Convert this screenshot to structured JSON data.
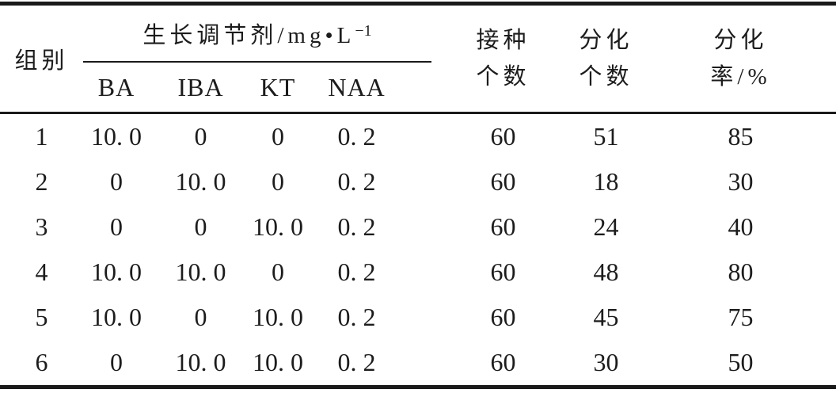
{
  "table": {
    "title_semantic": "植物生长调节剂与分化率试验结果表",
    "ink_color": "#1c1c1c",
    "background_color": "#ffffff",
    "header": {
      "group": "组别",
      "regulator": {
        "main": "生长调节剂/mg•L",
        "sup": "−1"
      },
      "sub": [
        "BA",
        "IBA",
        "KT",
        "NAA"
      ],
      "inoculated": {
        "line1": "接种",
        "line2": "个数"
      },
      "differentiated": {
        "line1": "分化",
        "line2": "个数"
      },
      "rate": {
        "line1": "分化",
        "line2": "率/%"
      }
    },
    "rows": [
      {
        "group": "1",
        "ba": "10. 0",
        "iba": "0",
        "kt": "0",
        "naa": "0. 2",
        "inoculated": "60",
        "differentiated": "51",
        "rate": "85"
      },
      {
        "group": "2",
        "ba": "0",
        "iba": "10. 0",
        "kt": "0",
        "naa": "0. 2",
        "inoculated": "60",
        "differentiated": "18",
        "rate": "30"
      },
      {
        "group": "3",
        "ba": "0",
        "iba": "0",
        "kt": "10. 0",
        "naa": "0. 2",
        "inoculated": "60",
        "differentiated": "24",
        "rate": "40"
      },
      {
        "group": "4",
        "ba": "10. 0",
        "iba": "10. 0",
        "kt": "0",
        "naa": "0. 2",
        "inoculated": "60",
        "differentiated": "48",
        "rate": "80"
      },
      {
        "group": "5",
        "ba": "10. 0",
        "iba": "0",
        "kt": "10. 0",
        "naa": "0. 2",
        "inoculated": "60",
        "differentiated": "45",
        "rate": "75"
      },
      {
        "group": "6",
        "ba": "0",
        "iba": "10. 0",
        "kt": "10. 0",
        "naa": "0. 2",
        "inoculated": "60",
        "differentiated": "30",
        "rate": "50"
      }
    ]
  },
  "chart_data": {
    "type": "table",
    "columns": [
      "组别",
      "BA/mg·L−1",
      "IBA/mg·L−1",
      "KT/mg·L−1",
      "NAA/mg·L−1",
      "接种个数",
      "分化个数",
      "分化率/%"
    ],
    "rows": [
      [
        1,
        10.0,
        0,
        0,
        0.2,
        60,
        51,
        85
      ],
      [
        2,
        0,
        10.0,
        0,
        0.2,
        60,
        18,
        30
      ],
      [
        3,
        0,
        0,
        10.0,
        0.2,
        60,
        24,
        40
      ],
      [
        4,
        10.0,
        10.0,
        0,
        0.2,
        60,
        48,
        80
      ],
      [
        5,
        10.0,
        0,
        10.0,
        0.2,
        60,
        45,
        75
      ],
      [
        6,
        0,
        10.0,
        10.0,
        0.2,
        60,
        30,
        50
      ]
    ]
  }
}
